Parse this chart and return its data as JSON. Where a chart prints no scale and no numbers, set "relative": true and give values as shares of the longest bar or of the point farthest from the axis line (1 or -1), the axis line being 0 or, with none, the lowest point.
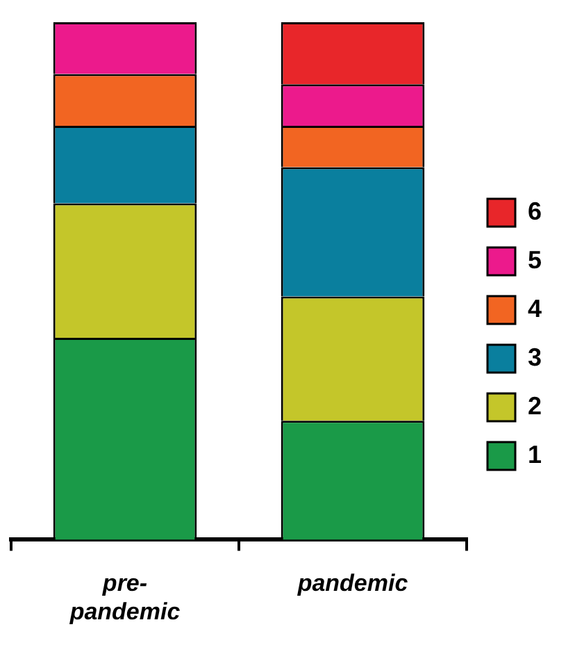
{
  "chart_data": {
    "type": "bar",
    "stacked": true,
    "relative": true,
    "legend": "right",
    "grid": false,
    "categories": [
      "pre-pandemic",
      "pandemic"
    ],
    "series": [
      {
        "name": "1",
        "color": "#1a9a48",
        "values": [
          0.39,
          0.23
        ]
      },
      {
        "name": "2",
        "color": "#c4c62a",
        "values": [
          0.26,
          0.24
        ]
      },
      {
        "name": "3",
        "color": "#0a7f9e",
        "values": [
          0.15,
          0.25
        ]
      },
      {
        "name": "4",
        "color": "#f26522",
        "values": [
          0.1,
          0.08
        ]
      },
      {
        "name": "5",
        "color": "#ec1a8c",
        "values": [
          0.1,
          0.08
        ]
      },
      {
        "name": "6",
        "color": "#e8262a",
        "values": [
          null,
          0.12
        ]
      }
    ]
  }
}
